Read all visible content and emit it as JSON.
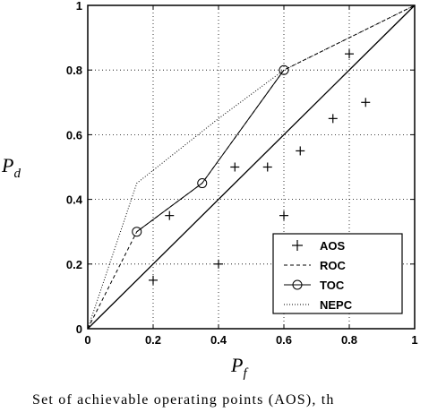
{
  "chart_data": {
    "type": "line",
    "xlabel": "P",
    "xlabel_sub": "f",
    "ylabel": "P",
    "ylabel_sub": "d",
    "xlim": [
      0,
      1
    ],
    "ylim": [
      0,
      1
    ],
    "x_ticks": [
      "0",
      "0.2",
      "0.4",
      "0.6",
      "0.8",
      "1"
    ],
    "y_ticks": [
      "0",
      "0.2",
      "0.4",
      "0.6",
      "0.8",
      "1"
    ],
    "grid": true,
    "legend_position": "bottom-right",
    "series": [
      {
        "name": "AOS",
        "kind": "scatter",
        "marker": "plus",
        "points": [
          [
            0.2,
            0.15
          ],
          [
            0.25,
            0.35
          ],
          [
            0.4,
            0.2
          ],
          [
            0.45,
            0.5
          ],
          [
            0.55,
            0.5
          ],
          [
            0.6,
            0.35
          ],
          [
            0.65,
            0.55
          ],
          [
            0.75,
            0.65
          ],
          [
            0.8,
            0.85
          ],
          [
            0.85,
            0.7
          ]
        ]
      },
      {
        "name": "ROC",
        "kind": "line",
        "style": "dashed",
        "points": [
          [
            0,
            0
          ],
          [
            0.15,
            0.3
          ],
          [
            0.35,
            0.45
          ],
          [
            0.6,
            0.8
          ],
          [
            0.8,
            0.9
          ],
          [
            1,
            1
          ]
        ]
      },
      {
        "name": "TOC",
        "kind": "line",
        "style": "solid-circles",
        "points": [
          [
            0.15,
            0.3
          ],
          [
            0.35,
            0.45
          ],
          [
            0.6,
            0.8
          ]
        ]
      },
      {
        "name": "NEPC",
        "kind": "line",
        "style": "dotted",
        "points": [
          [
            0,
            0
          ],
          [
            0.15,
            0.45
          ],
          [
            0.4,
            0.65
          ],
          [
            0.6,
            0.8
          ],
          [
            0.8,
            0.9
          ],
          [
            1,
            1
          ]
        ]
      },
      {
        "name": "",
        "kind": "line",
        "style": "solid",
        "points": [
          [
            0,
            0
          ],
          [
            1,
            1
          ]
        ]
      }
    ]
  },
  "caption": "Set of achievable operating points (AOS), th"
}
